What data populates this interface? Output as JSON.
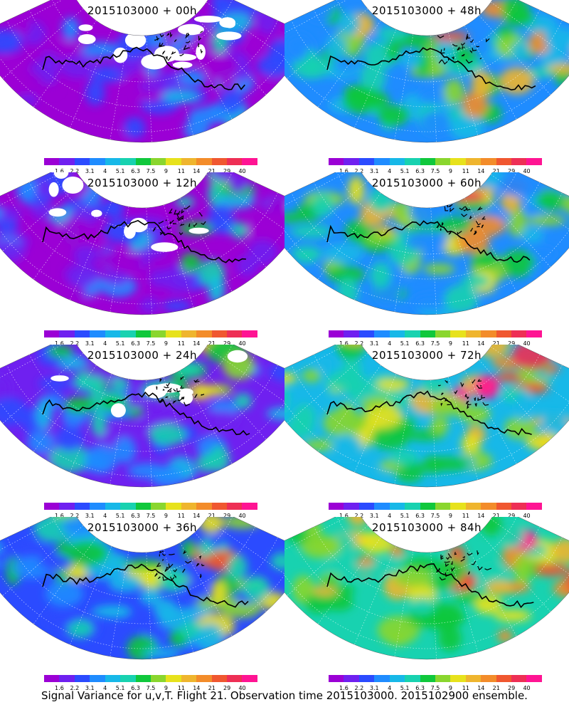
{
  "palette": [
    "#9b00d5",
    "#6f20f0",
    "#2b4bff",
    "#1f8cff",
    "#17b8e8",
    "#18d2b0",
    "#10c83c",
    "#8ad62e",
    "#e7e21c",
    "#efb52e",
    "#f38c2a",
    "#f05730",
    "#ee2f55",
    "#ff1493"
  ],
  "colorbar_labels": [
    "1.6",
    "2.2",
    "3.1",
    "4",
    "5.1",
    "6.3",
    "7.5",
    "9",
    "11",
    "14",
    "21",
    "29",
    "40"
  ],
  "panels": [
    {
      "title": "2015103000 + 00h",
      "level": 0
    },
    {
      "title": "2015103000 + 48h",
      "level": 4
    },
    {
      "title": "2015103000 + 12h",
      "level": 1
    },
    {
      "title": "2015103000 + 60h",
      "level": 5
    },
    {
      "title": "2015103000 + 24h",
      "level": 2
    },
    {
      "title": "2015103000 + 72h",
      "level": 6
    },
    {
      "title": "2015103000 + 36h",
      "level": 3
    },
    {
      "title": "2015103000 + 84h",
      "level": 7
    }
  ],
  "footer": "Signal Variance for u,v,T. Flight 21. Observation time 2015103000. 2015102900 ensemble."
}
